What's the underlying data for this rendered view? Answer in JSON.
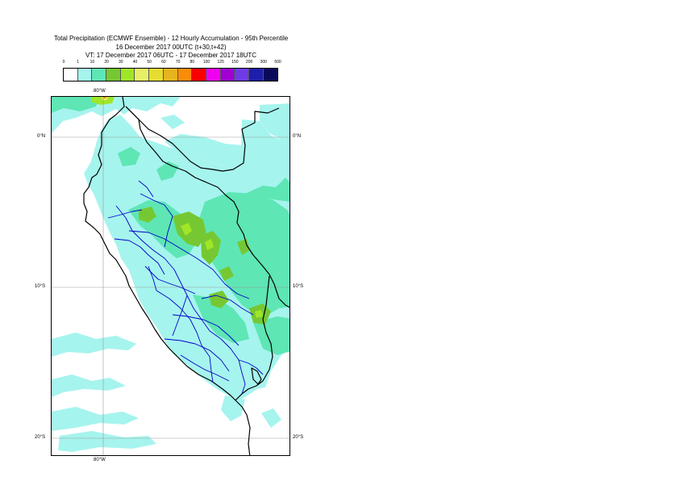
{
  "title": {
    "line1": "Total Precipitation (ECMWF Ensemble) - 12 Hourly Accumulation - 95th Percentile",
    "line2": "16 December 2017 00UTC (t+30,t+42)",
    "line3": "VT: 17 December 2017 06UTC - 17 December 2017 18UTC"
  },
  "legend": {
    "labels": [
      "0",
      "1",
      "10",
      "20",
      "30",
      "40",
      "50",
      "60",
      "70",
      "80",
      "100",
      "125",
      "150",
      "200",
      "300",
      "500"
    ],
    "colors": [
      "#ffffff",
      "#a6f4ee",
      "#5ee6b5",
      "#76c832",
      "#a0e628",
      "#e6f064",
      "#e6dc32",
      "#e6b41e",
      "#fa8c0a",
      "#fa0000",
      "#f000f0",
      "#a000d2",
      "#6e3ce6",
      "#1e1eaa",
      "#0a0a5a"
    ]
  },
  "axes": {
    "lon_top": "80°W",
    "lon_bottom": "80°W",
    "lat_0_left": "0°N",
    "lat_0_right": "0°N",
    "lat_10_left": "10°S",
    "lat_10_right": "10°S",
    "lat_20_left": "20°S",
    "lat_20_right": "20°S"
  },
  "map_colors": {
    "light": "#a6f4ee",
    "medium": "#5ee6b5",
    "green": "#76c832",
    "lime": "#a0e628",
    "orange": "#fa8c0a",
    "yellow": "#e6f064",
    "coast": "#000000",
    "admin": "#0000c8",
    "grid": "#999999"
  }
}
